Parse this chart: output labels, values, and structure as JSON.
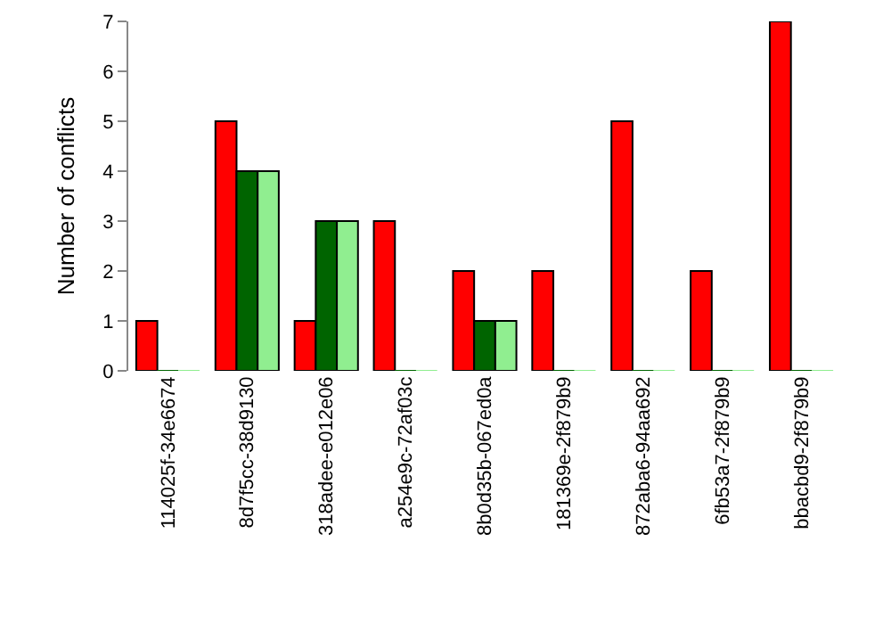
{
  "chart_data": {
    "type": "bar",
    "ylabel": "Number of conflicts",
    "categories": [
      "114025f-34e6674",
      "8d7f5cc-38d9130",
      "318adee-e012e06",
      "a254e9c-72af03c",
      "8b0d35b-067ed0a",
      "181369e-2f879b9",
      "872aba6-94aa692",
      "6fb53a7-2f879b9",
      "bbacbd9-2f879b9"
    ],
    "series": [
      {
        "color": "#ff0000",
        "values": [
          1,
          5,
          1,
          3,
          2,
          2,
          5,
          2,
          7
        ]
      },
      {
        "color": "#006400",
        "values": [
          0,
          4,
          3,
          0,
          1,
          0,
          0,
          0,
          0
        ]
      },
      {
        "color": "#90ee90",
        "values": [
          0,
          4,
          3,
          0,
          1,
          0,
          0,
          0,
          0
        ]
      }
    ],
    "ylim": [
      0,
      7
    ],
    "yticks": [
      0,
      1,
      2,
      3,
      4,
      5,
      6,
      7
    ],
    "grid": false
  }
}
